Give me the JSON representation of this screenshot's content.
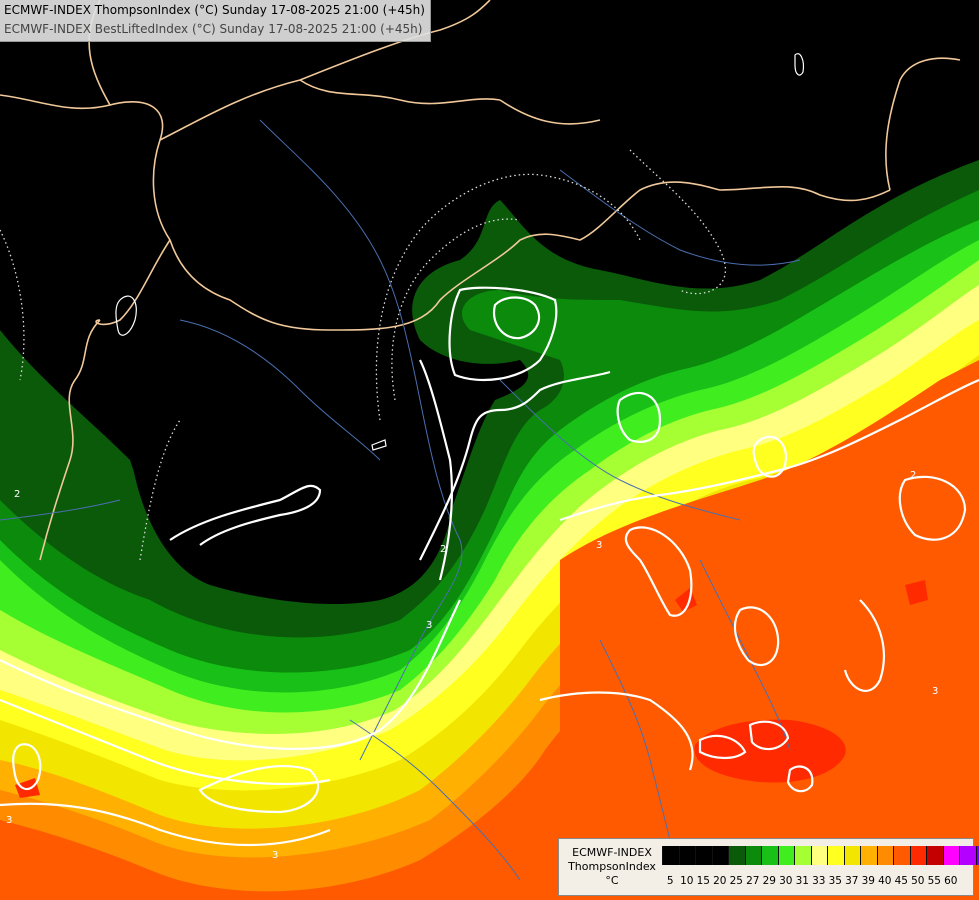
{
  "title": {
    "line1": "ECMWF-INDEX ThompsonIndex (°C) Sunday 17-08-2025 21:00 (+45h)",
    "line2": "ECMWF-INDEX BestLiftedIndex (°C) Sunday 17-08-2025 21:00 (+45h)"
  },
  "legend": {
    "label_line1": "ECMWF-INDEX",
    "label_line2": "ThompsonIndex",
    "unit": "°C",
    "swatches": [
      "#000000",
      "#000000",
      "#000000",
      "#000000",
      "#0a5a0a",
      "#0b8a0b",
      "#18c018",
      "#40ee20",
      "#a6ff33",
      "#ffff80",
      "#ffff20",
      "#f2e600",
      "#ffb000",
      "#ff8c00",
      "#ff5a00",
      "#ff2a00",
      "#c40000",
      "#ff00ff",
      "#b400ff",
      "#7a00ff",
      "#0000ff",
      "#000000"
    ],
    "ticks": [
      "5",
      "10",
      "15",
      "20",
      "25",
      "27",
      "29",
      "30",
      "31",
      "33",
      "35",
      "37",
      "39",
      "40",
      "45",
      "50",
      "55",
      "60"
    ]
  },
  "contour_labels": [
    "2",
    "2",
    "2",
    "3",
    "3",
    "3",
    "3",
    "3"
  ]
}
